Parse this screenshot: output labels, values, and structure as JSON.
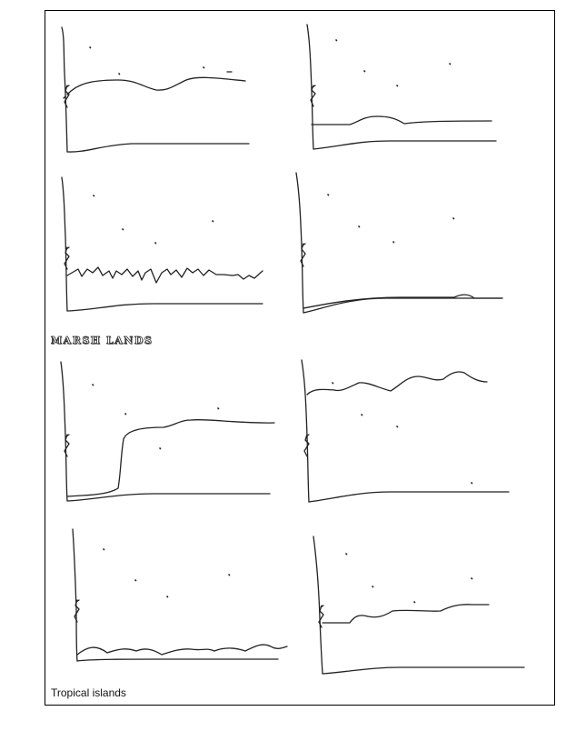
{
  "section_label_marsh": "MARSH LANDS",
  "caption": "Tropical islands",
  "stroke_color": "#222222",
  "panel_count": 8
}
